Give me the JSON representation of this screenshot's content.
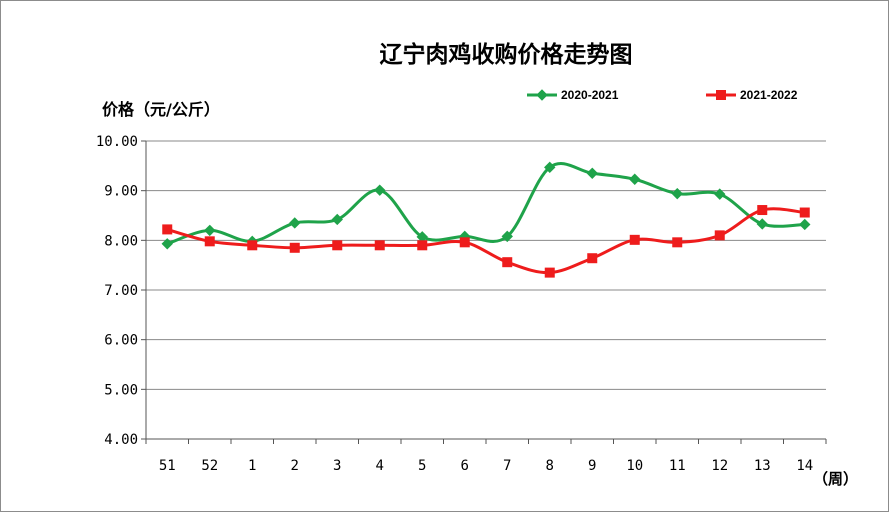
{
  "chart_data": {
    "type": "line",
    "title": "辽宁肉鸡收购价格走势图",
    "ylabel": "价格（元/公斤）",
    "xlabel": "（周）",
    "categories": [
      "51",
      "52",
      "1",
      "2",
      "3",
      "4",
      "5",
      "6",
      "7",
      "8",
      "9",
      "10",
      "11",
      "12",
      "13",
      "14"
    ],
    "y_ticks": [
      "4.00",
      "5.00",
      "6.00",
      "7.00",
      "8.00",
      "9.00",
      "10.00"
    ],
    "ylim": [
      4,
      10
    ],
    "grid": true,
    "legend_position": "top-right",
    "series": [
      {
        "name": "2020-2021",
        "color": "#1fa34a",
        "marker": "diamond",
        "values": [
          7.93,
          8.2,
          7.98,
          8.35,
          8.42,
          9.01,
          8.07,
          8.08,
          8.08,
          9.47,
          9.35,
          9.23,
          8.94,
          8.93,
          8.33,
          8.32
        ]
      },
      {
        "name": "2021-2022",
        "color": "#ee1c1c",
        "marker": "square",
        "values": [
          8.22,
          7.98,
          7.9,
          7.85,
          7.9,
          7.9,
          7.9,
          7.96,
          7.56,
          7.35,
          7.64,
          8.01,
          7.96,
          8.1,
          8.61,
          8.56
        ]
      }
    ]
  }
}
